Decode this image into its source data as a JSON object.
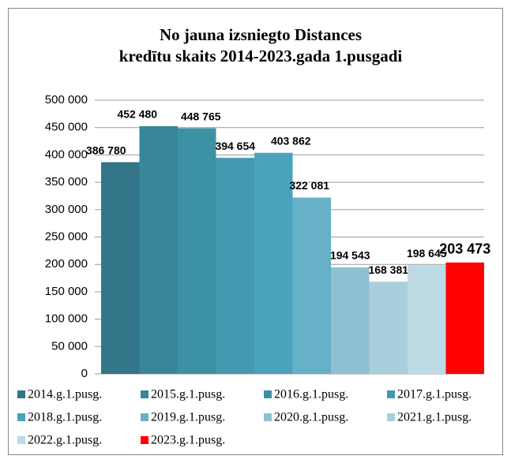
{
  "chart_data": {
    "type": "bar",
    "title": [
      "No jauna izsniegto Distances",
      "kredītu skaits 2014-2023.gada 1.pusgadi"
    ],
    "ylim": [
      0,
      500000
    ],
    "yticks": [
      0,
      {
        "value": 50000,
        "label": "50 000"
      },
      {
        "value": 100000,
        "label": "100 000"
      },
      {
        "value": 150000,
        "label": "150 000"
      },
      {
        "value": 200000,
        "label": "200 000"
      },
      {
        "value": 250000,
        "label": "250 000"
      },
      {
        "value": 300000,
        "label": "300 000"
      },
      {
        "value": 350000,
        "label": "350 000"
      },
      {
        "value": 400000,
        "label": "400 000"
      },
      {
        "value": 450000,
        "label": "450 000"
      },
      {
        "value": 500000,
        "label": "500 000"
      }
    ],
    "grid": true,
    "legend": "bottom",
    "series": [
      {
        "name": "2014.g.1.pusg.",
        "color": "#33768a",
        "values": [
          386780
        ],
        "value_labels": [
          "386 780"
        ]
      },
      {
        "name": "2015.g.1.pusg.",
        "color": "#37869a",
        "values": [
          452480
        ],
        "value_labels": [
          "452 480"
        ]
      },
      {
        "name": "2016.g.1.pusg.",
        "color": "#3d91a5",
        "values": [
          448765
        ],
        "value_labels": [
          "448 765"
        ]
      },
      {
        "name": "2017.g.1.pusg.",
        "color": "#4399b0",
        "values": [
          394654
        ],
        "value_labels": [
          "394 654"
        ]
      },
      {
        "name": "2018.g.1.pusg.",
        "color": "#4aa3bd",
        "values": [
          403862
        ],
        "value_labels": [
          "403 862"
        ]
      },
      {
        "name": "2019.g.1.pusg.",
        "color": "#66b0c8",
        "values": [
          322081
        ],
        "value_labels": [
          "322 081"
        ]
      },
      {
        "name": "2020.g.1.pusg.",
        "color": "#8fc1d3",
        "values": [
          194543
        ],
        "value_labels": [
          "194 543"
        ]
      },
      {
        "name": "2021.g.1.pusg.",
        "color": "#a9cfdd",
        "values": [
          168381
        ],
        "value_labels": [
          "168 381"
        ]
      },
      {
        "name": "2022.g.1.pusg.",
        "color": "#bcd9e4",
        "values": [
          198645
        ],
        "value_labels": [
          "198 645"
        ]
      },
      {
        "name": "2023.g.1.pusg.",
        "color": "#ff0000",
        "values": [
          203473
        ],
        "value_labels": [
          "203 473"
        ]
      }
    ]
  }
}
